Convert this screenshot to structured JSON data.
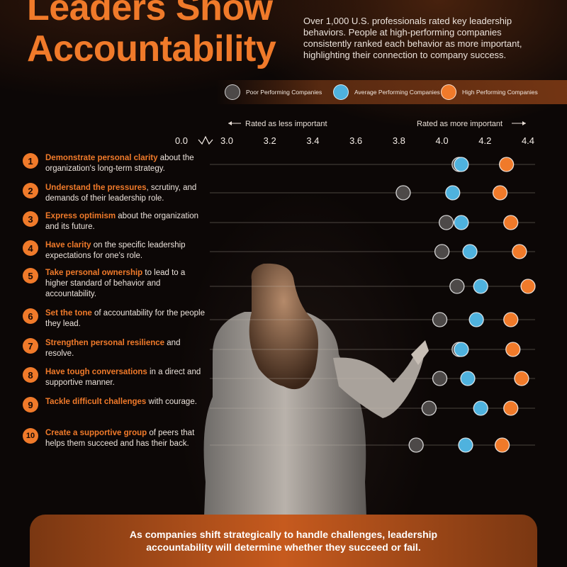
{
  "title": "Leaders Show Accountability",
  "intro": "Over 1,000 U.S. professionals rated key leadership behaviors. People at high-performing companies consistently ranked each behavior as more important, highlighting their connection to company success.",
  "legend": [
    {
      "label": "Poor Performing Companies",
      "color": "#4d4948"
    },
    {
      "label": "Average Performing Companies",
      "color": "#4fb2de"
    },
    {
      "label": "High Performing Companies",
      "color": "#f07a2a"
    }
  ],
  "hints": {
    "less": "Rated as less important",
    "more": "Rated as more important"
  },
  "behaviors": [
    {
      "number": "1",
      "highlight": "Demonstrate personal clarity",
      "rest": " about the organization's long-term strategy."
    },
    {
      "number": "2",
      "highlight": "Understand the pressures",
      "rest": ", scrutiny, and demands of their leadership role."
    },
    {
      "number": "3",
      "highlight": "Express optimism",
      "rest": " about the organization and its future."
    },
    {
      "number": "4",
      "highlight": "Have clarity",
      "rest": " on the specific leadership expectations for one's role."
    },
    {
      "number": "5",
      "highlight": "Take personal ownership",
      "rest": " to lead to a higher standard of behavior and accountability."
    },
    {
      "number": "6",
      "highlight": "Set the tone",
      "rest": " of accountability for the people they lead."
    },
    {
      "number": "7",
      "highlight": "Strengthen personal resilience",
      "rest": " and resolve."
    },
    {
      "number": "8",
      "highlight": "Have tough conversations",
      "rest": " in a direct and supportive manner."
    },
    {
      "number": "9",
      "highlight": "Tackle difficult challenges",
      "rest": " with courage."
    },
    {
      "number": "10",
      "highlight": "Create a supportive group",
      "rest": " of peers that helps them succeed and has their back."
    }
  ],
  "chart_data": {
    "type": "scatter",
    "orientation": "horizontal dot plot",
    "x_ticks": [
      "0.0",
      "3.0",
      "3.2",
      "3.4",
      "3.6",
      "3.8",
      "4.0",
      "4.2",
      "4.4"
    ],
    "x_break": "between 0.0 and 3.0",
    "xlim": [
      3.0,
      4.4
    ],
    "grid": false,
    "legend_position": "top",
    "categories": [
      "1",
      "2",
      "3",
      "4",
      "5",
      "6",
      "7",
      "8",
      "9",
      "10"
    ],
    "series": [
      {
        "name": "Poor Performing Companies",
        "color": "#4d4948",
        "values": [
          4.08,
          3.82,
          4.02,
          4.0,
          4.07,
          3.99,
          4.08,
          3.99,
          3.94,
          3.88
        ]
      },
      {
        "name": "Average Performing Companies",
        "color": "#4fb2de",
        "values": [
          4.09,
          4.05,
          4.09,
          4.13,
          4.18,
          4.16,
          4.09,
          4.12,
          4.18,
          4.11
        ]
      },
      {
        "name": "High Performing Companies",
        "color": "#f07a2a",
        "values": [
          4.3,
          4.27,
          4.32,
          4.36,
          4.4,
          4.32,
          4.33,
          4.37,
          4.32,
          4.28
        ]
      }
    ]
  },
  "footer": "As companies shift strategically to handle challenges, leadership accountability will determine whether they succeed or fail."
}
